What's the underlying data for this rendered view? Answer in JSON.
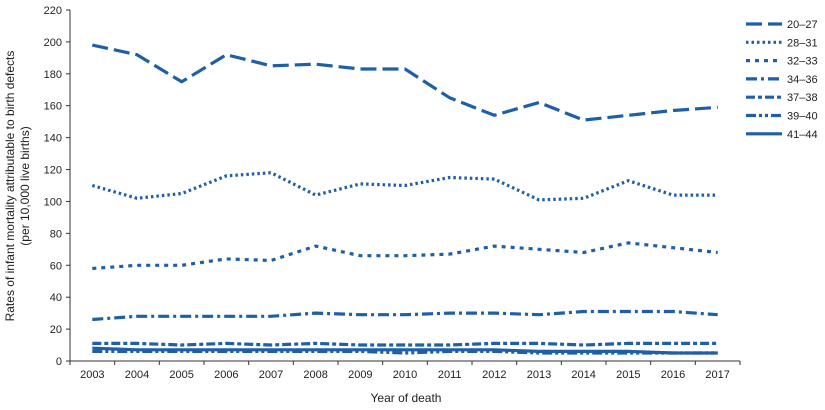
{
  "chart_data": {
    "type": "line",
    "title": "",
    "xlabel": "Year of death",
    "ylabel_lines": [
      "Rates of infant mortality attributable to birth defects",
      "(per 10,000 live births)"
    ],
    "ylim": [
      0,
      220
    ],
    "yticks": [
      0,
      20,
      40,
      60,
      80,
      100,
      120,
      140,
      160,
      180,
      200,
      220
    ],
    "x": [
      2003,
      2004,
      2005,
      2006,
      2007,
      2008,
      2009,
      2010,
      2011,
      2012,
      2013,
      2014,
      2015,
      2016,
      2017
    ],
    "grid": false,
    "legend_position": "right",
    "color": "#1f5fa8",
    "series": [
      {
        "name": "20–27",
        "dash": "long-dash",
        "values": [
          198,
          192,
          175,
          192,
          185,
          186,
          183,
          183,
          165,
          154,
          162,
          151,
          154,
          157,
          159
        ]
      },
      {
        "name": "28–31",
        "dash": "dot",
        "values": [
          110,
          102,
          105,
          116,
          118,
          104,
          111,
          110,
          115,
          114,
          101,
          102,
          113,
          104,
          104
        ]
      },
      {
        "name": "32–33",
        "dash": "short-dash",
        "values": [
          58,
          60,
          60,
          64,
          63,
          72,
          66,
          66,
          67,
          72,
          70,
          68,
          74,
          71,
          68
        ]
      },
      {
        "name": "34–36",
        "dash": "dash-dot",
        "values": [
          26,
          28,
          28,
          28,
          28,
          30,
          29,
          29,
          30,
          30,
          29,
          31,
          31,
          31,
          29
        ]
      },
      {
        "name": "37–38",
        "dash": "dash-short",
        "values": [
          11,
          11,
          10,
          11,
          10,
          11,
          10,
          10,
          10,
          11,
          11,
          10,
          11,
          11,
          11
        ]
      },
      {
        "name": "39–40",
        "dash": "dash-dot-dot",
        "values": [
          6,
          6,
          6,
          6,
          6,
          6,
          6,
          5,
          6,
          6,
          5,
          5,
          5,
          5,
          5
        ]
      },
      {
        "name": "41–44",
        "dash": "solid",
        "values": [
          8,
          7,
          7,
          7,
          7,
          7,
          7,
          7,
          7,
          7,
          6,
          6,
          6,
          5,
          5
        ]
      }
    ]
  }
}
